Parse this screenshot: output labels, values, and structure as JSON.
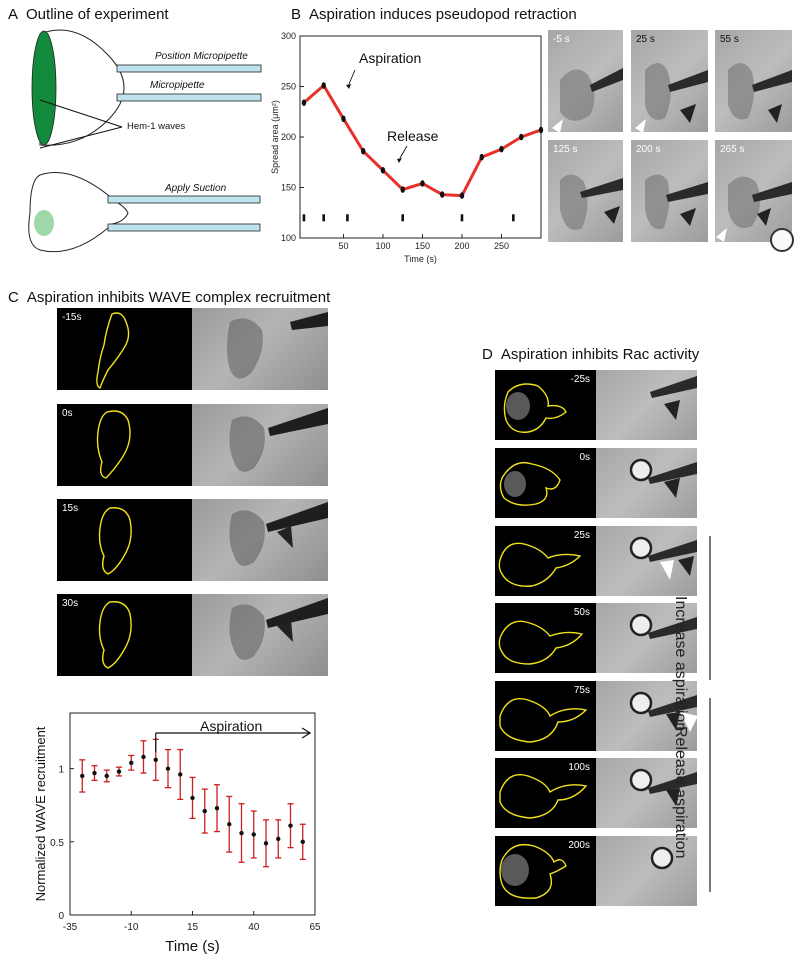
{
  "panelA": {
    "title_letter": "A",
    "title": "Outline of experiment",
    "labels": {
      "position_micropipette": "Position Micropipette",
      "micropipette": "Micropipette",
      "hem_waves": "Hem-1 waves",
      "apply_suction": "Apply Suction"
    },
    "colors": {
      "cell_front": "#128a3c",
      "wave_spot": "#9fd8a8",
      "pipette": "#bfe3ee"
    }
  },
  "panelB": {
    "title_letter": "B",
    "title": "Aspiration induces pseudopod retraction",
    "annotation_aspiration": "Aspiration",
    "annotation_release": "Release",
    "image_times": [
      "-5 s",
      "25 s",
      "55 s",
      "125 s",
      "200 s",
      "265 s"
    ]
  },
  "panelC": {
    "title_letter": "C",
    "title": "Aspiration inhibits WAVE complex recruitment",
    "image_times": [
      "-15s",
      "0s",
      "15s",
      "30s"
    ],
    "aspiration_label": "Aspiration"
  },
  "panelD": {
    "title_letter": "D",
    "title": "Aspiration inhibits Rac activity",
    "image_times": [
      "-25s",
      "0s",
      "25s",
      "50s",
      "75s",
      "100s",
      "200s"
    ],
    "increase_label": "Increase  aspiration",
    "release_label": "Release  aspiration"
  },
  "chart_data": [
    {
      "type": "line",
      "x": [
        0,
        25,
        50,
        75,
        100,
        125,
        150,
        175,
        200,
        225,
        250,
        275,
        300
      ],
      "values": [
        234,
        251,
        218,
        186,
        167,
        148,
        154,
        143,
        142,
        180,
        188,
        200,
        207
      ],
      "xlabel": "Time (s)",
      "ylabel": "Spread area (μm²)",
      "xticks": [
        50,
        100,
        150,
        200,
        250
      ],
      "yticks": [
        100,
        150,
        200,
        250,
        300
      ],
      "xlim": [
        -5,
        300
      ],
      "ylim": [
        100,
        300
      ],
      "frame_markers_x": [
        0,
        25,
        55,
        125,
        200,
        265
      ],
      "line_color": "#e8302a"
    },
    {
      "type": "scatter",
      "x": [
        -30,
        -25,
        -20,
        -15,
        -10,
        -5,
        0,
        5,
        10,
        15,
        20,
        25,
        30,
        35,
        40,
        45,
        50,
        55,
        60
      ],
      "values": [
        0.95,
        0.97,
        0.95,
        0.98,
        1.04,
        1.08,
        1.06,
        1.0,
        0.96,
        0.8,
        0.71,
        0.73,
        0.62,
        0.56,
        0.55,
        0.49,
        0.52,
        0.61,
        0.5
      ],
      "errors": [
        0.11,
        0.05,
        0.04,
        0.03,
        0.05,
        0.11,
        0.14,
        0.13,
        0.17,
        0.14,
        0.15,
        0.16,
        0.19,
        0.2,
        0.16,
        0.16,
        0.13,
        0.15,
        0.12
      ],
      "xlabel": "Time (s)",
      "ylabel": "Normalized WAVE recruitment",
      "xticks": [
        -35,
        -10,
        15,
        40,
        65
      ],
      "yticks": [
        0,
        0.5,
        1
      ],
      "xlim": [
        -35,
        65
      ],
      "ylim": [
        0,
        1.38
      ],
      "aspiration_start_x": 0,
      "aspiration_end_x": 63,
      "errorbar_color": "#cc1f1f"
    }
  ]
}
